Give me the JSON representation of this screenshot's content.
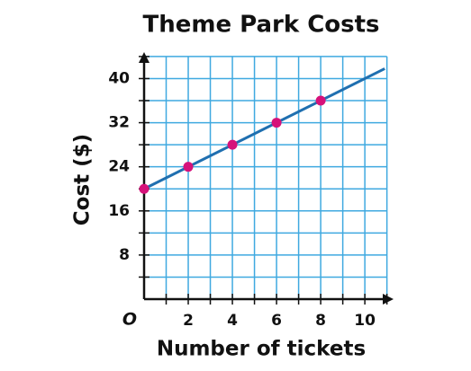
{
  "chart_data": {
    "type": "line",
    "title": "Theme Park Costs",
    "x_label": "Number of tickets",
    "y_label": "Cost ($)",
    "origin_label": "O",
    "series": [
      {
        "color": "#1f6fb0",
        "x": [
          0,
          10.9
        ],
        "values": [
          20,
          41.8
        ]
      },
      {
        "color": "#d6127a",
        "style": "markers",
        "x": [
          0,
          2,
          4,
          6,
          8
        ],
        "values": [
          20,
          24,
          28,
          32,
          36
        ]
      }
    ],
    "xlim": [
      0,
      11.3
    ],
    "ylim": [
      0,
      44.8
    ],
    "xticks": [
      2,
      4,
      6,
      8,
      10
    ],
    "yticks": [
      8,
      16,
      24,
      32,
      40
    ],
    "xgrid": [
      1,
      2,
      3,
      4,
      5,
      6,
      7,
      8,
      9,
      10,
      11
    ],
    "ygrid": [
      4,
      8,
      12,
      16,
      20,
      24,
      28,
      32,
      36,
      40,
      44
    ],
    "grid_color": "#3fa9e0"
  }
}
